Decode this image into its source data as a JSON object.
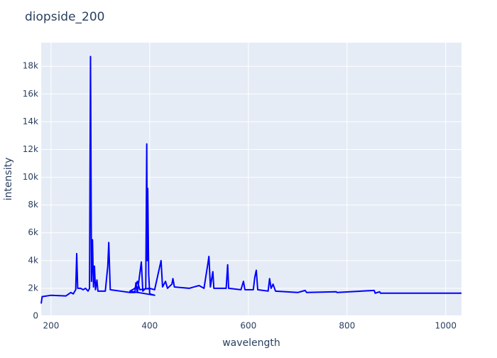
{
  "chart_data": {
    "type": "line",
    "title": "diopside_200",
    "x_label": "wavelength",
    "y_label": "intensity",
    "xlim": [
      180,
      1032
    ],
    "ylim": [
      0,
      19700
    ],
    "xticks": [
      200,
      400,
      600,
      800,
      1000
    ],
    "yticks": [
      0,
      {
        "value": 2000,
        "label": "2k"
      },
      {
        "value": 4000,
        "label": "4k"
      },
      {
        "value": 6000,
        "label": "6k"
      },
      {
        "value": 8000,
        "label": "8k"
      },
      {
        "value": 10000,
        "label": "10k"
      },
      {
        "value": 12000,
        "label": "12k"
      },
      {
        "value": 14000,
        "label": "14k"
      },
      {
        "value": 16000,
        "label": "16k"
      },
      {
        "value": 18000,
        "label": "18k"
      }
    ],
    "grid": true,
    "series": [
      {
        "color": "#0000ff",
        "x": [
          180,
          182,
          200,
          230,
          240,
          245,
          250,
          252,
          254,
          260,
          265,
          270,
          275,
          278,
          280,
          282,
          284,
          286,
          288,
          290,
          293,
          295,
          310,
          315,
          317,
          320,
          340,
          360,
          370,
          372,
          375,
          383,
          386,
          392,
          394,
          395,
          396,
          398,
          400,
          410,
          360,
          370,
          375,
          380,
          400,
          410,
          423,
          426,
          432,
          436,
          445,
          447,
          450,
          480,
          490,
          500,
          510,
          518,
          520,
          523,
          528,
          530,
          555,
          558,
          560,
          585,
          590,
          593,
          610,
          613,
          616,
          619,
          640,
          643,
          646,
          650,
          655,
          700,
          715,
          718,
          778,
          780,
          855,
          857,
          866,
          868,
          1032
        ],
        "values": [
          900,
          1400,
          1500,
          1450,
          1700,
          1600,
          1900,
          4500,
          2000,
          2000,
          1900,
          2000,
          1800,
          2000,
          18700,
          2500,
          5500,
          2100,
          3600,
          1900,
          2600,
          1800,
          1800,
          3600,
          5300,
          1900,
          1800,
          1700,
          1700,
          2400,
          1700,
          3900,
          1800,
          2000,
          12400,
          4000,
          9200,
          3000,
          1600,
          1500,
          1800,
          2000,
          2500,
          1900,
          2000,
          1900,
          4000,
          2100,
          2500,
          2000,
          2300,
          2700,
          2100,
          2000,
          2100,
          2200,
          2000,
          3800,
          4300,
          2100,
          3200,
          2000,
          2000,
          3700,
          2000,
          1900,
          2500,
          1900,
          1900,
          2800,
          3300,
          1900,
          1800,
          2700,
          2000,
          2300,
          1800,
          1700,
          1850,
          1700,
          1750,
          1700,
          1850,
          1650,
          1750,
          1650,
          1650
        ]
      }
    ]
  }
}
